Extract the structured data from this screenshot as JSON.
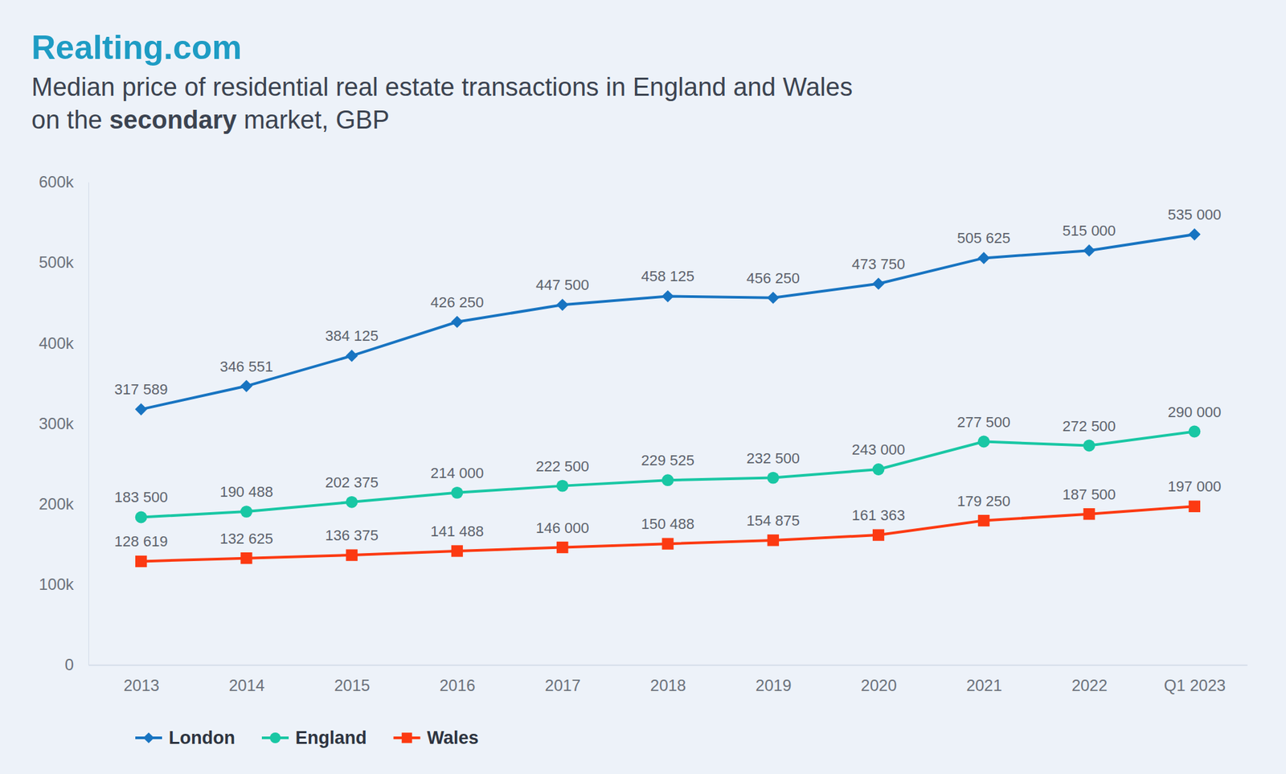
{
  "chart_data": {
    "type": "line",
    "brand": "Realting.com",
    "title": "Median price of residential real estate transactions in England and Wales on the secondary market, GBP",
    "categories": [
      "2013",
      "2014",
      "2015",
      "2016",
      "2017",
      "2018",
      "2019",
      "2020",
      "2021",
      "2022",
      "Q1 2023"
    ],
    "series": [
      {
        "name": "London",
        "color": "#1874c1",
        "marker": "diamond",
        "line_style": "solid",
        "values": [
          317589,
          346551,
          384125,
          426250,
          447500,
          458125,
          456250,
          473750,
          505625,
          515000,
          535000
        ],
        "value_labels": [
          "317 589",
          "346 551",
          "384 125",
          "426 250",
          "447 500",
          "458 125",
          "456 250",
          "473 750",
          "505 625",
          "515 000",
          "535 000"
        ]
      },
      {
        "name": "England",
        "color": "#19c7a4",
        "marker": "circle",
        "line_style": "solid",
        "values": [
          183500,
          190488,
          202375,
          214000,
          222500,
          229525,
          232500,
          243000,
          277500,
          272500,
          290000
        ],
        "value_labels": [
          "183 500",
          "190 488",
          "202 375",
          "214 000",
          "222 500",
          "229 525",
          "232 500",
          "243 000",
          "277 500",
          "272 500",
          "290 000"
        ]
      },
      {
        "name": "Wales",
        "color": "#fc3a12",
        "marker": "square",
        "line_style": "solid",
        "values": [
          128619,
          132625,
          136375,
          141488,
          146000,
          150488,
          154875,
          161363,
          179250,
          187500,
          197000
        ],
        "value_labels": [
          "128 619",
          "132 625",
          "136 375",
          "141 488",
          "146 000",
          "150 488",
          "154 875",
          "161 363",
          "179 250",
          "187 500",
          "197 000"
        ]
      }
    ],
    "ylim": [
      0,
      600000
    ],
    "yticks": [
      0,
      {
        "value": 100000,
        "label": "100k"
      },
      {
        "value": 200000,
        "label": "200k"
      },
      {
        "value": 300000,
        "label": "300k"
      },
      {
        "value": 400000,
        "label": "400k"
      },
      {
        "value": 500000,
        "label": "500k"
      },
      {
        "value": 600000,
        "label": "600k"
      }
    ],
    "grid": false,
    "legend": "bottom-left",
    "data_labels": true
  }
}
